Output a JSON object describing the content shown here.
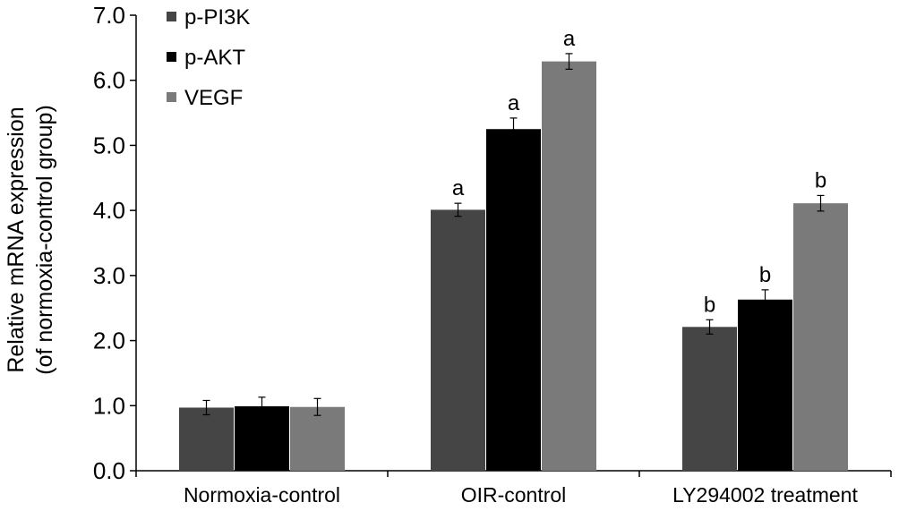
{
  "chart_data": {
    "type": "bar",
    "title": "",
    "xlabel": "",
    "ylabel_lines": [
      "Relative mRNA expression",
      "(of normoxia-control group)"
    ],
    "ylim": [
      0,
      7
    ],
    "yticks": [
      "0.0",
      "1.0",
      "2.0",
      "3.0",
      "4.0",
      "5.0",
      "6.0",
      "7.0"
    ],
    "categories": [
      "Normoxia-control",
      "OIR-control",
      "LY294002 treatment"
    ],
    "legend_position": "top-left",
    "grid": false,
    "series": [
      {
        "name": "p-PI3K",
        "color": "#454545",
        "values": [
          0.97,
          4.01,
          2.21
        ],
        "errors": [
          0.11,
          0.1,
          0.11
        ],
        "labels": [
          "",
          "a",
          "b"
        ]
      },
      {
        "name": "p-AKT",
        "color": "#000000",
        "values": [
          0.99,
          5.25,
          2.63
        ],
        "errors": [
          0.14,
          0.17,
          0.15
        ],
        "labels": [
          "",
          "a",
          "b"
        ]
      },
      {
        "name": "VEGF",
        "color": "#7a7a7a",
        "values": [
          0.98,
          6.29,
          4.11
        ],
        "errors": [
          0.13,
          0.12,
          0.12
        ],
        "labels": [
          "",
          "a",
          "b"
        ]
      }
    ]
  }
}
